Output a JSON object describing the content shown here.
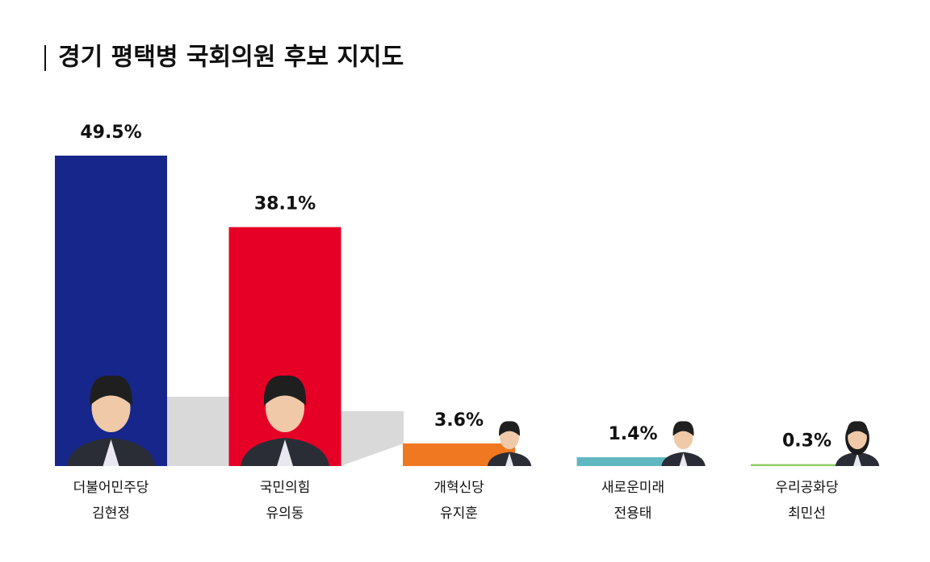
{
  "chart_data": {
    "type": "bar",
    "title": "경기 평택병 국회의원 후보 지지도",
    "categories": [
      "더불어민주당",
      "국민의힘",
      "개혁신당",
      "새로운미래",
      "우리공화당"
    ],
    "candidates": [
      "김현정",
      "유의동",
      "유지훈",
      "전용태",
      "최민선"
    ],
    "values": [
      49.5,
      38.1,
      3.6,
      1.4,
      0.3
    ],
    "value_labels": [
      "49.5%",
      "38.1%",
      "3.6%",
      "1.4%",
      "0.3%"
    ],
    "colors": [
      "#17268a",
      "#e60026",
      "#f07820",
      "#5fb7c0",
      "#8ccb5e"
    ]
  }
}
